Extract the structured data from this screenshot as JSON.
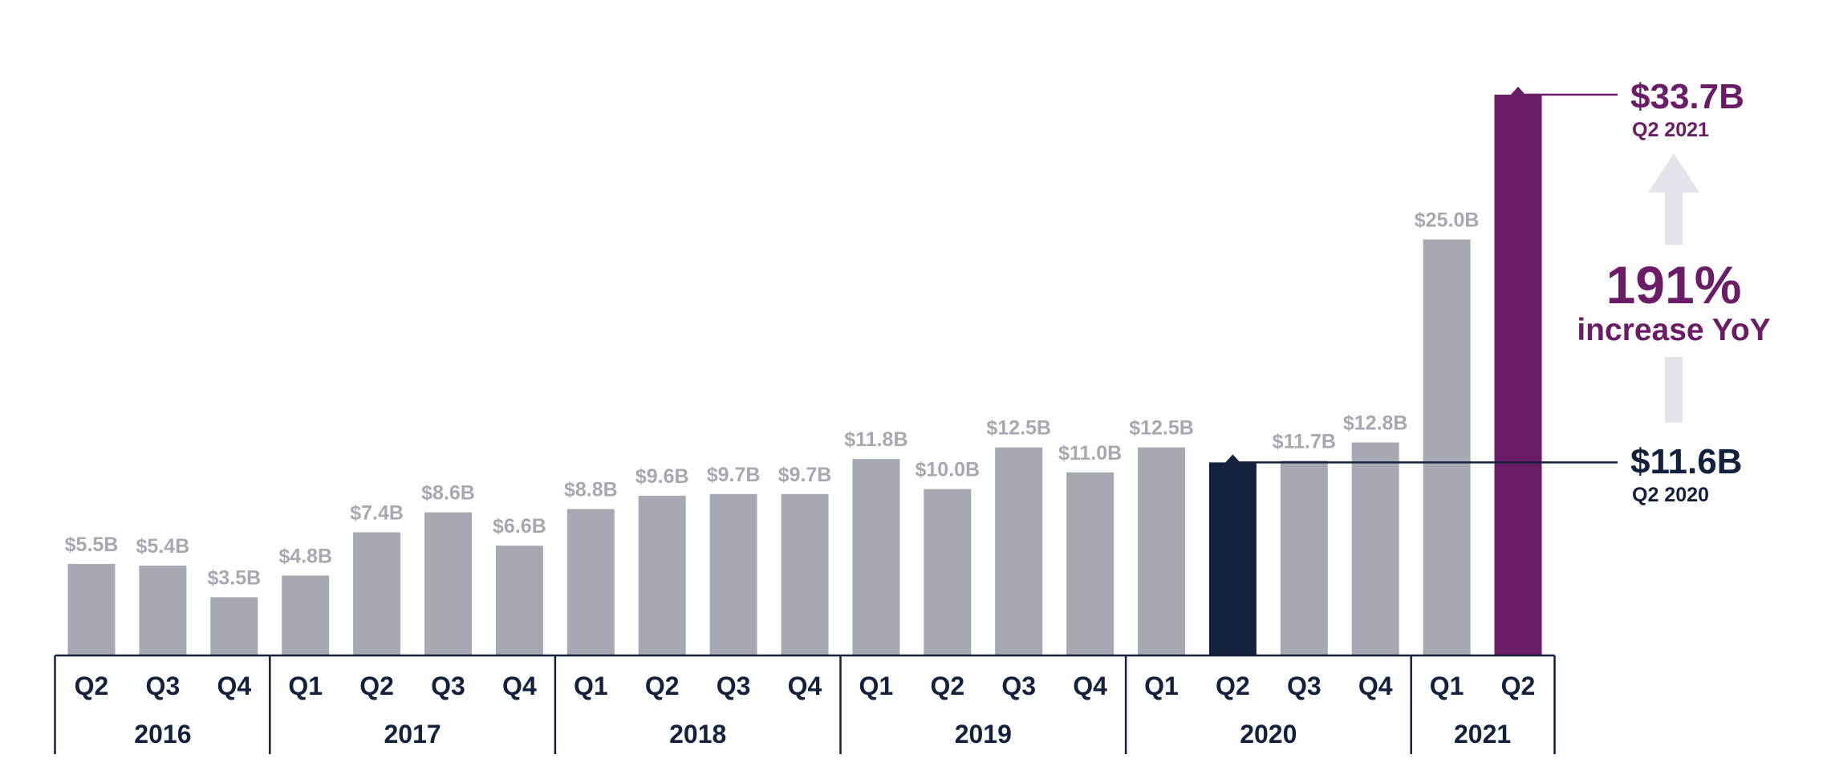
{
  "chart_data": {
    "type": "bar",
    "categories": [
      "Q2",
      "Q3",
      "Q4",
      "Q1",
      "Q2",
      "Q3",
      "Q4",
      "Q1",
      "Q2",
      "Q3",
      "Q4",
      "Q1",
      "Q2",
      "Q3",
      "Q4",
      "Q1",
      "Q2",
      "Q3",
      "Q4",
      "Q1",
      "Q2"
    ],
    "years": [
      {
        "label": "2016",
        "count": 3
      },
      {
        "label": "2017",
        "count": 4
      },
      {
        "label": "2018",
        "count": 4
      },
      {
        "label": "2019",
        "count": 4
      },
      {
        "label": "2020",
        "count": 4
      },
      {
        "label": "2021",
        "count": 2
      }
    ],
    "values": [
      5.5,
      5.4,
      3.5,
      4.8,
      7.4,
      8.6,
      6.6,
      8.8,
      9.6,
      9.7,
      9.7,
      11.8,
      10.0,
      12.5,
      11.0,
      12.5,
      11.6,
      11.7,
      12.8,
      25.0,
      33.7
    ],
    "value_labels": [
      "$5.5B",
      "$5.4B",
      "$3.5B",
      "$4.8B",
      "$7.4B",
      "$8.6B",
      "$6.6B",
      "$8.8B",
      "$9.6B",
      "$9.7B",
      "$9.7B",
      "$11.8B",
      "$10.0B",
      "$12.5B",
      "$11.0B",
      "$12.5B",
      "",
      "$11.7B",
      "$12.8B",
      "$25.0B",
      ""
    ],
    "unit": "$B",
    "ylim": [
      0,
      34
    ],
    "grid": false,
    "legend": "none",
    "colors": {
      "default": "#a7a9b2",
      "highlight_2020": "#14213d",
      "highlight_2021": "#6a1c66",
      "axis": "#14213d",
      "arrow": "#e7e3ec"
    },
    "highlight": {
      "base_index": 16,
      "peak_index": 20
    },
    "callouts": {
      "peak_value": "$33.7B",
      "peak_period": "Q2 2021",
      "base_value": "$11.6B",
      "base_period": "Q2 2020",
      "pct_value": "191%",
      "pct_label": "increase YoY"
    }
  }
}
